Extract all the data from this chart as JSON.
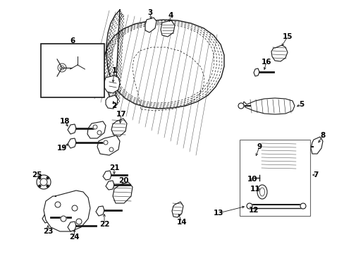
{
  "background_color": "#ffffff",
  "line_color": "#1a1a1a",
  "text_color": "#000000",
  "figsize": [
    4.89,
    3.6
  ],
  "dpi": 100,
  "door_outer": {
    "x": [
      1.55,
      1.48,
      1.38,
      1.28,
      1.22,
      1.2,
      1.22,
      1.3,
      1.42,
      1.58,
      1.78,
      2.02,
      2.28,
      2.55,
      2.78,
      2.98,
      3.1,
      3.14,
      3.1,
      3.0,
      2.82,
      2.58,
      2.3,
      2.0,
      1.72,
      1.52,
      1.4,
      1.34,
      1.32,
      1.38,
      1.5,
      1.55
    ],
    "y": [
      3.42,
      3.46,
      3.5,
      3.5,
      3.44,
      3.34,
      3.2,
      3.05,
      2.9,
      2.78,
      2.7,
      2.64,
      2.6,
      2.58,
      2.58,
      2.6,
      2.65,
      2.75,
      2.88,
      3.0,
      3.08,
      3.12,
      3.12,
      3.08,
      2.98,
      2.84,
      2.7,
      2.56,
      2.4,
      2.24,
      2.1,
      3.42
    ]
  }
}
